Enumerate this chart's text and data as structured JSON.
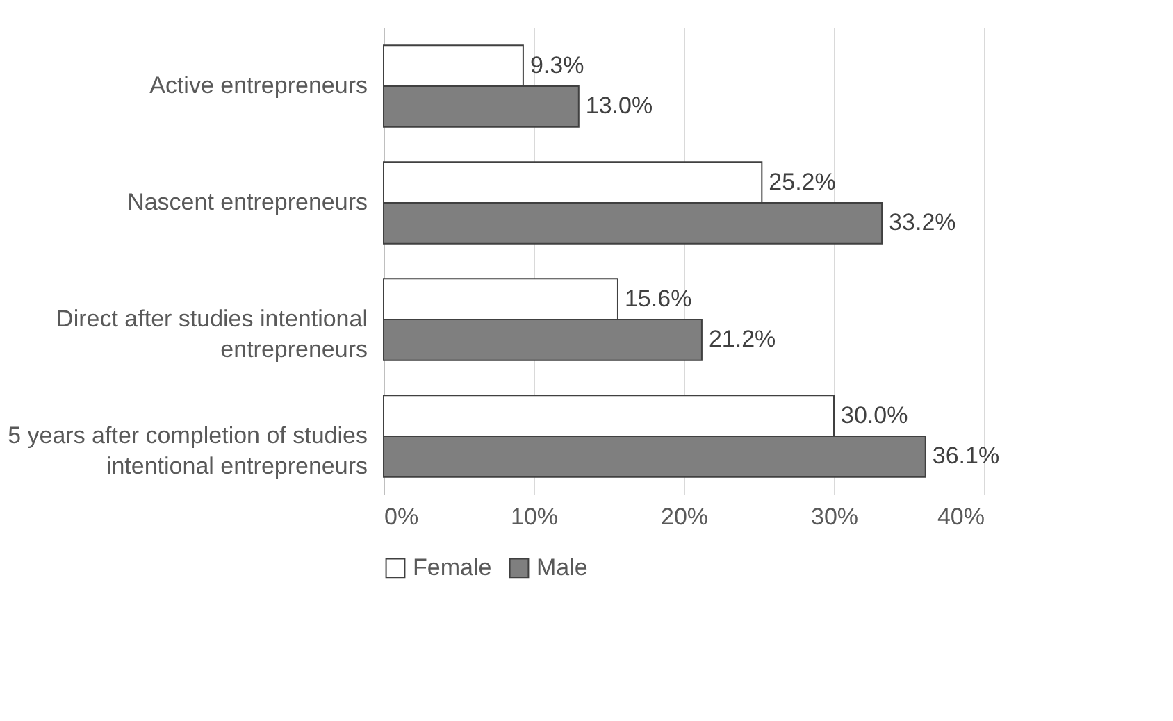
{
  "chart_data": {
    "type": "bar",
    "orientation": "horizontal",
    "categories": [
      "Active entrepreneurs",
      "Nascent entrepreneurs",
      "Direct after studies intentional entrepreneurs",
      "5 years after completion of studies intentional entrepreneurs"
    ],
    "series": [
      {
        "name": "Female",
        "color": "#ffffff",
        "values": [
          9.3,
          25.2,
          15.6,
          30.0
        ],
        "value_labels": [
          "9.3%",
          "25.2%",
          "15.6%",
          "30.0%"
        ]
      },
      {
        "name": "Male",
        "color": "#7f7f7f",
        "values": [
          13.0,
          33.2,
          21.2,
          36.1
        ],
        "value_labels": [
          "13.0%",
          "33.2%",
          "21.2%",
          "36.1%"
        ]
      }
    ],
    "xlim": [
      0,
      40
    ],
    "xticks": [
      {
        "value": 0,
        "label": "0%"
      },
      {
        "value": 10,
        "label": "10%"
      },
      {
        "value": 20,
        "label": "20%"
      },
      {
        "value": 30,
        "label": "30%"
      },
      {
        "value": 40,
        "label": "40%"
      }
    ],
    "grid": "x",
    "legend": "bottom"
  }
}
